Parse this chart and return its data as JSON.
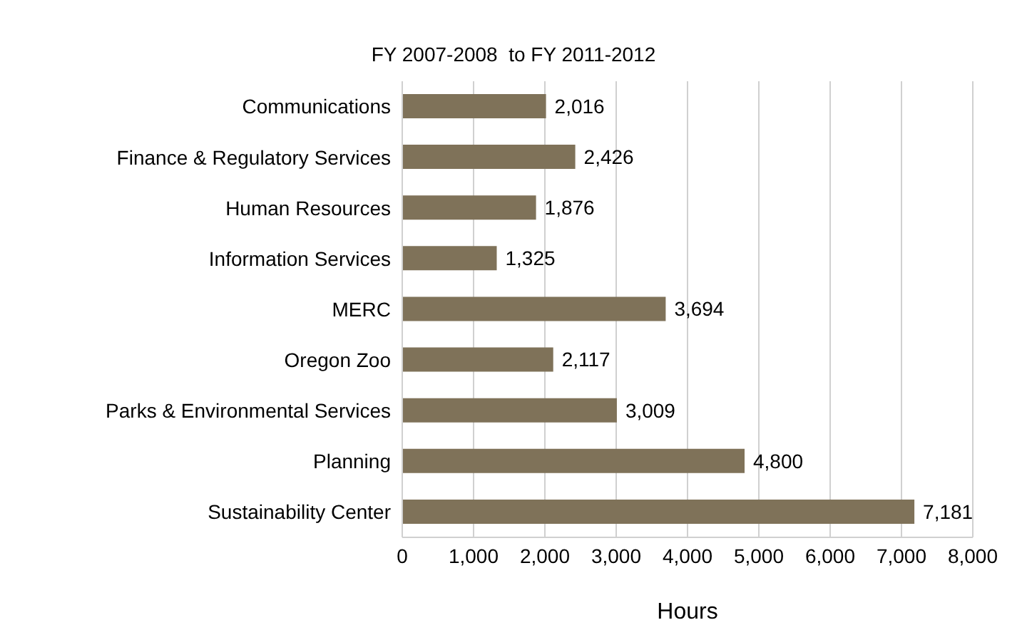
{
  "chart_data": {
    "type": "bar",
    "orientation": "horizontal",
    "title": "FY 2007-2008  to FY 2011-2012",
    "xlabel": "Hours",
    "categories": [
      "Communications",
      "Finance & Regulatory Services",
      "Human Resources",
      "Information Services",
      "MERC",
      "Oregon Zoo",
      "Parks & Environmental Services",
      "Planning",
      "Sustainability Center"
    ],
    "values": [
      2016,
      2426,
      1876,
      1325,
      3694,
      2117,
      3009,
      4800,
      7181
    ],
    "color": "#7f7259",
    "xlim": [
      0,
      8000
    ],
    "xticks": [
      0,
      {
        "value": 1000,
        "label": "1,000"
      },
      {
        "value": 2000,
        "label": "2,000"
      },
      {
        "value": 3000,
        "label": "3,000"
      },
      {
        "value": 4000,
        "label": "4,000"
      },
      {
        "value": 5000,
        "label": "5,000"
      },
      {
        "value": 6000,
        "label": "6,000"
      },
      {
        "value": 7000,
        "label": "7,000"
      },
      {
        "value": 8000,
        "label": "8,000"
      }
    ],
    "value_labels": [
      "2,016",
      "2,426",
      "1,876",
      "1,325",
      "3,694",
      "2,117",
      "3,009",
      "4,800",
      "7,181"
    ],
    "grid": "x"
  }
}
